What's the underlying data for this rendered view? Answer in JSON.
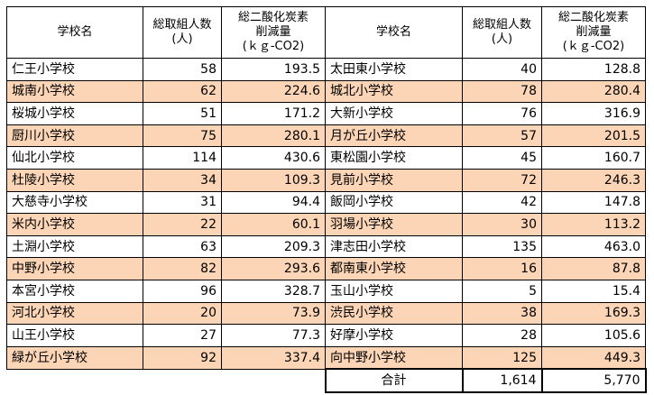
{
  "headers": {
    "school": "学校名",
    "participants_line1": "総取組人数",
    "participants_line2": "(人)",
    "co2_line1": "総二酸化炭素",
    "co2_line2": "削減量",
    "co2_line3": "(ｋｇ-CO2)"
  },
  "rows": [
    {
      "left": {
        "school": "仁王小学校",
        "participants": "58",
        "co2": "193.5"
      },
      "right": {
        "school": "太田東小学校",
        "participants": "40",
        "co2": "128.8"
      }
    },
    {
      "left": {
        "school": "城南小学校",
        "participants": "62",
        "co2": "224.6"
      },
      "right": {
        "school": "城北小学校",
        "participants": "78",
        "co2": "280.4"
      }
    },
    {
      "left": {
        "school": "桜城小学校",
        "participants": "51",
        "co2": "171.2"
      },
      "right": {
        "school": "大新小学校",
        "participants": "76",
        "co2": "316.9"
      }
    },
    {
      "left": {
        "school": "厨川小学校",
        "participants": "75",
        "co2": "280.1"
      },
      "right": {
        "school": "月が丘小学校",
        "participants": "57",
        "co2": "201.5"
      }
    },
    {
      "left": {
        "school": "仙北小学校",
        "participants": "114",
        "co2": "430.6"
      },
      "right": {
        "school": "東松園小学校",
        "participants": "45",
        "co2": "160.7"
      }
    },
    {
      "left": {
        "school": "杜陵小学校",
        "participants": "34",
        "co2": "109.3"
      },
      "right": {
        "school": "見前小学校",
        "participants": "72",
        "co2": "246.3"
      }
    },
    {
      "left": {
        "school": "大慈寺小学校",
        "participants": "31",
        "co2": "94.4"
      },
      "right": {
        "school": "飯岡小学校",
        "participants": "42",
        "co2": "147.8"
      }
    },
    {
      "left": {
        "school": "米内小学校",
        "participants": "22",
        "co2": "60.1"
      },
      "right": {
        "school": "羽場小学校",
        "participants": "30",
        "co2": "113.2"
      }
    },
    {
      "left": {
        "school": "土淵小学校",
        "participants": "63",
        "co2": "209.3"
      },
      "right": {
        "school": "津志田小学校",
        "participants": "135",
        "co2": "463.0"
      }
    },
    {
      "left": {
        "school": "中野小学校",
        "participants": "82",
        "co2": "293.6"
      },
      "right": {
        "school": "都南東小学校",
        "participants": "16",
        "co2": "87.8"
      }
    },
    {
      "left": {
        "school": "本宮小学校",
        "participants": "96",
        "co2": "328.7"
      },
      "right": {
        "school": "玉山小学校",
        "participants": "5",
        "co2": "15.4"
      }
    },
    {
      "left": {
        "school": "河北小学校",
        "participants": "20",
        "co2": "73.9"
      },
      "right": {
        "school": "渋民小学校",
        "participants": "38",
        "co2": "169.3"
      }
    },
    {
      "left": {
        "school": "山王小学校",
        "participants": "27",
        "co2": "77.3"
      },
      "right": {
        "school": "好摩小学校",
        "participants": "28",
        "co2": "105.6"
      }
    },
    {
      "left": {
        "school": "緑が丘小学校",
        "participants": "92",
        "co2": "337.4"
      },
      "right": {
        "school": "向中野小学校",
        "participants": "125",
        "co2": "449.3"
      }
    }
  ],
  "total": {
    "label": "合計",
    "participants": "1,614",
    "co2": "5,770"
  },
  "colors": {
    "highlight_row": "#fbd5b5",
    "border": "#000000"
  }
}
